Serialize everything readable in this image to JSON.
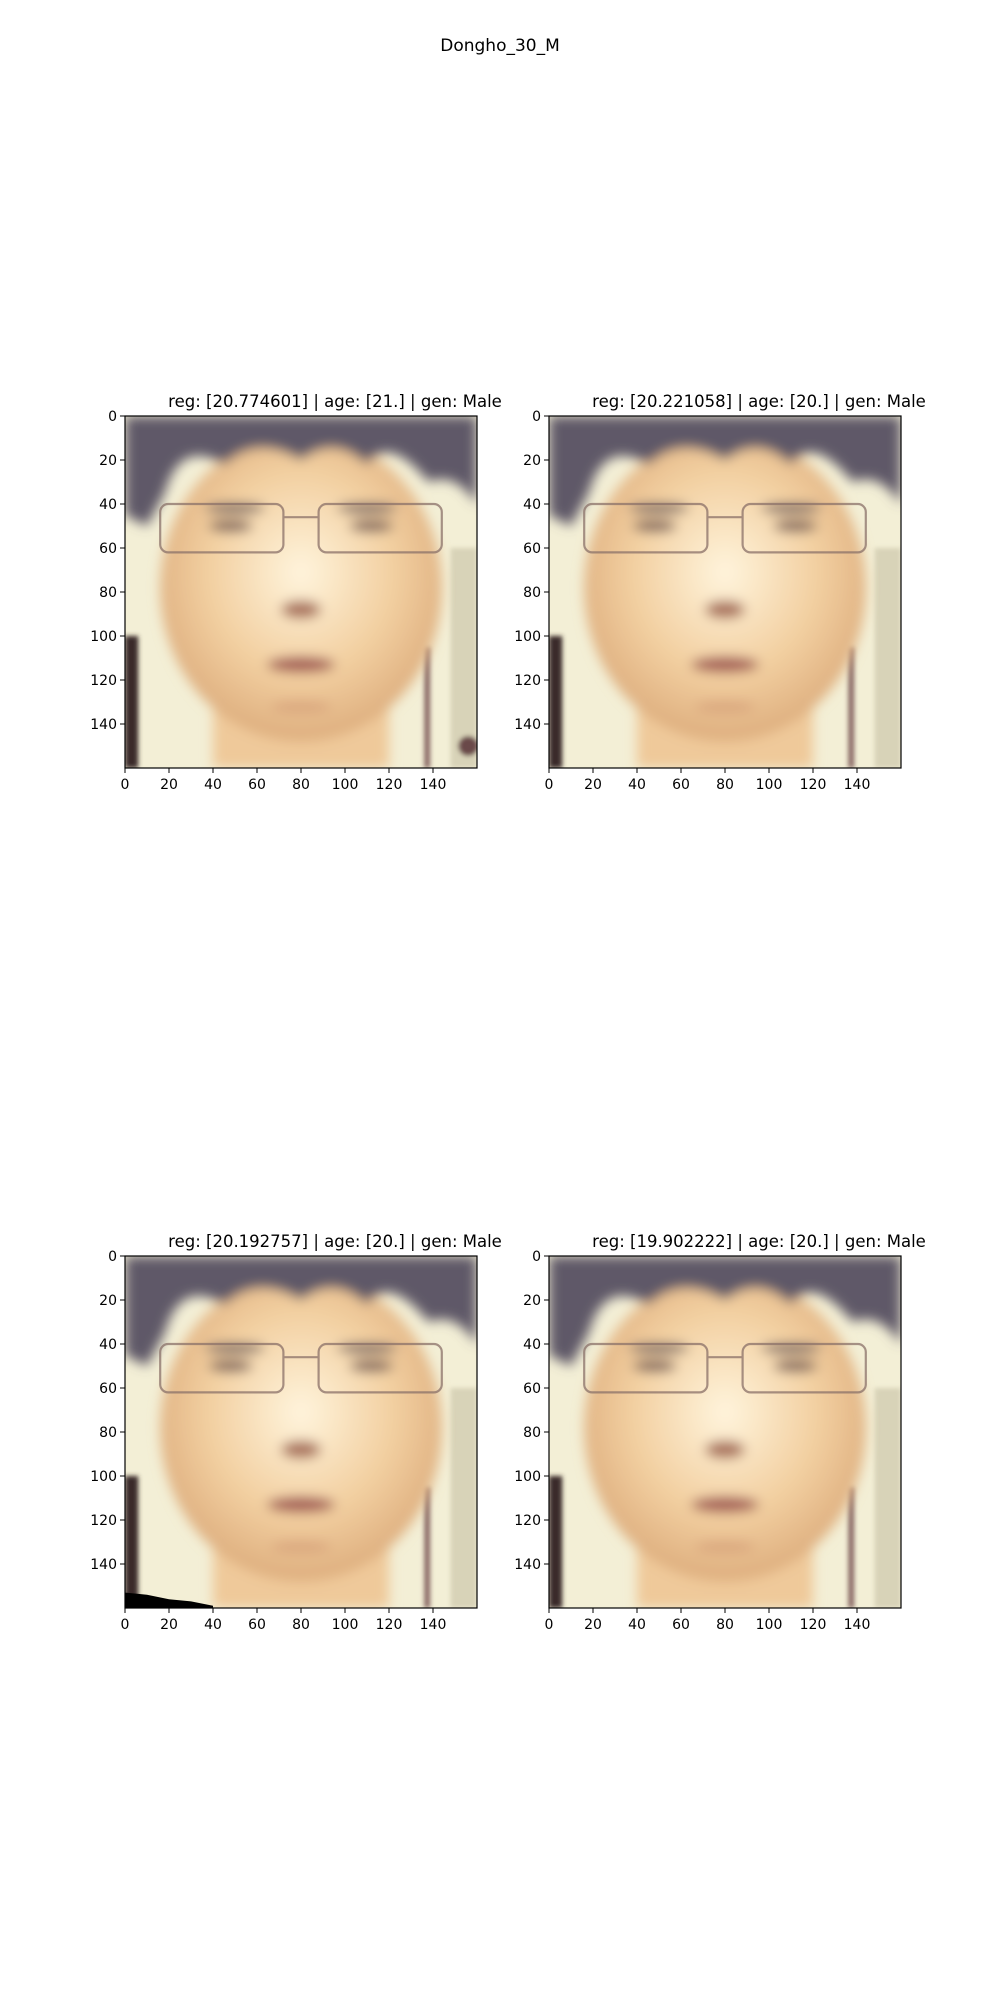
{
  "figure": {
    "title": "Dongho_30_M"
  },
  "panels": [
    {
      "title": "reg: [20.774601] | age: [21.] | gen: Male",
      "variant": "a"
    },
    {
      "title": "reg: [20.221058] | age: [20.] | gen: Male",
      "variant": "b"
    },
    {
      "title": "reg: [20.192757] | age: [20.] | gen: Male",
      "variant": "c"
    },
    {
      "title": "reg: [19.902222] | age: [20.] | gen: Male",
      "variant": "d"
    }
  ],
  "axes": {
    "x_ticks": [
      "0",
      "20",
      "40",
      "60",
      "80",
      "100",
      "120",
      "140"
    ],
    "y_ticks": [
      "0",
      "20",
      "40",
      "60",
      "80",
      "100",
      "120",
      "140"
    ],
    "range": [
      0,
      160
    ]
  },
  "colors": {
    "skin": "#f2cfa0",
    "hair": "#5e5868",
    "background_light": "#f3efd6",
    "frame": "#000000"
  }
}
